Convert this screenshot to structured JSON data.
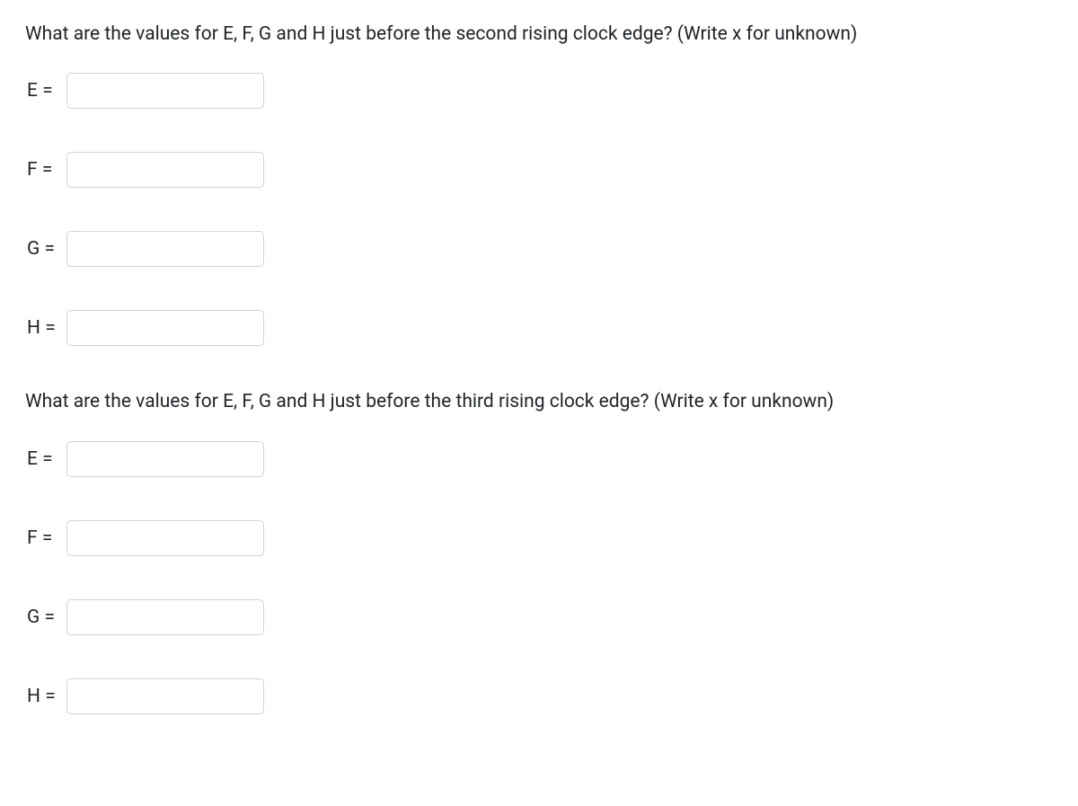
{
  "question1": {
    "prompt": "What are the values for E, F, G and H just before the second rising clock edge? (Write x for unknown)",
    "fields": [
      {
        "label": "E =",
        "value": ""
      },
      {
        "label": "F =",
        "value": ""
      },
      {
        "label": "G =",
        "value": ""
      },
      {
        "label": "H =",
        "value": ""
      }
    ]
  },
  "question2": {
    "prompt": "What are the values for E, F, G and H just before the third rising clock edge? (Write x for unknown)",
    "fields": [
      {
        "label": "E =",
        "value": ""
      },
      {
        "label": "F =",
        "value": ""
      },
      {
        "label": "G =",
        "value": ""
      },
      {
        "label": "H =",
        "value": ""
      }
    ]
  }
}
